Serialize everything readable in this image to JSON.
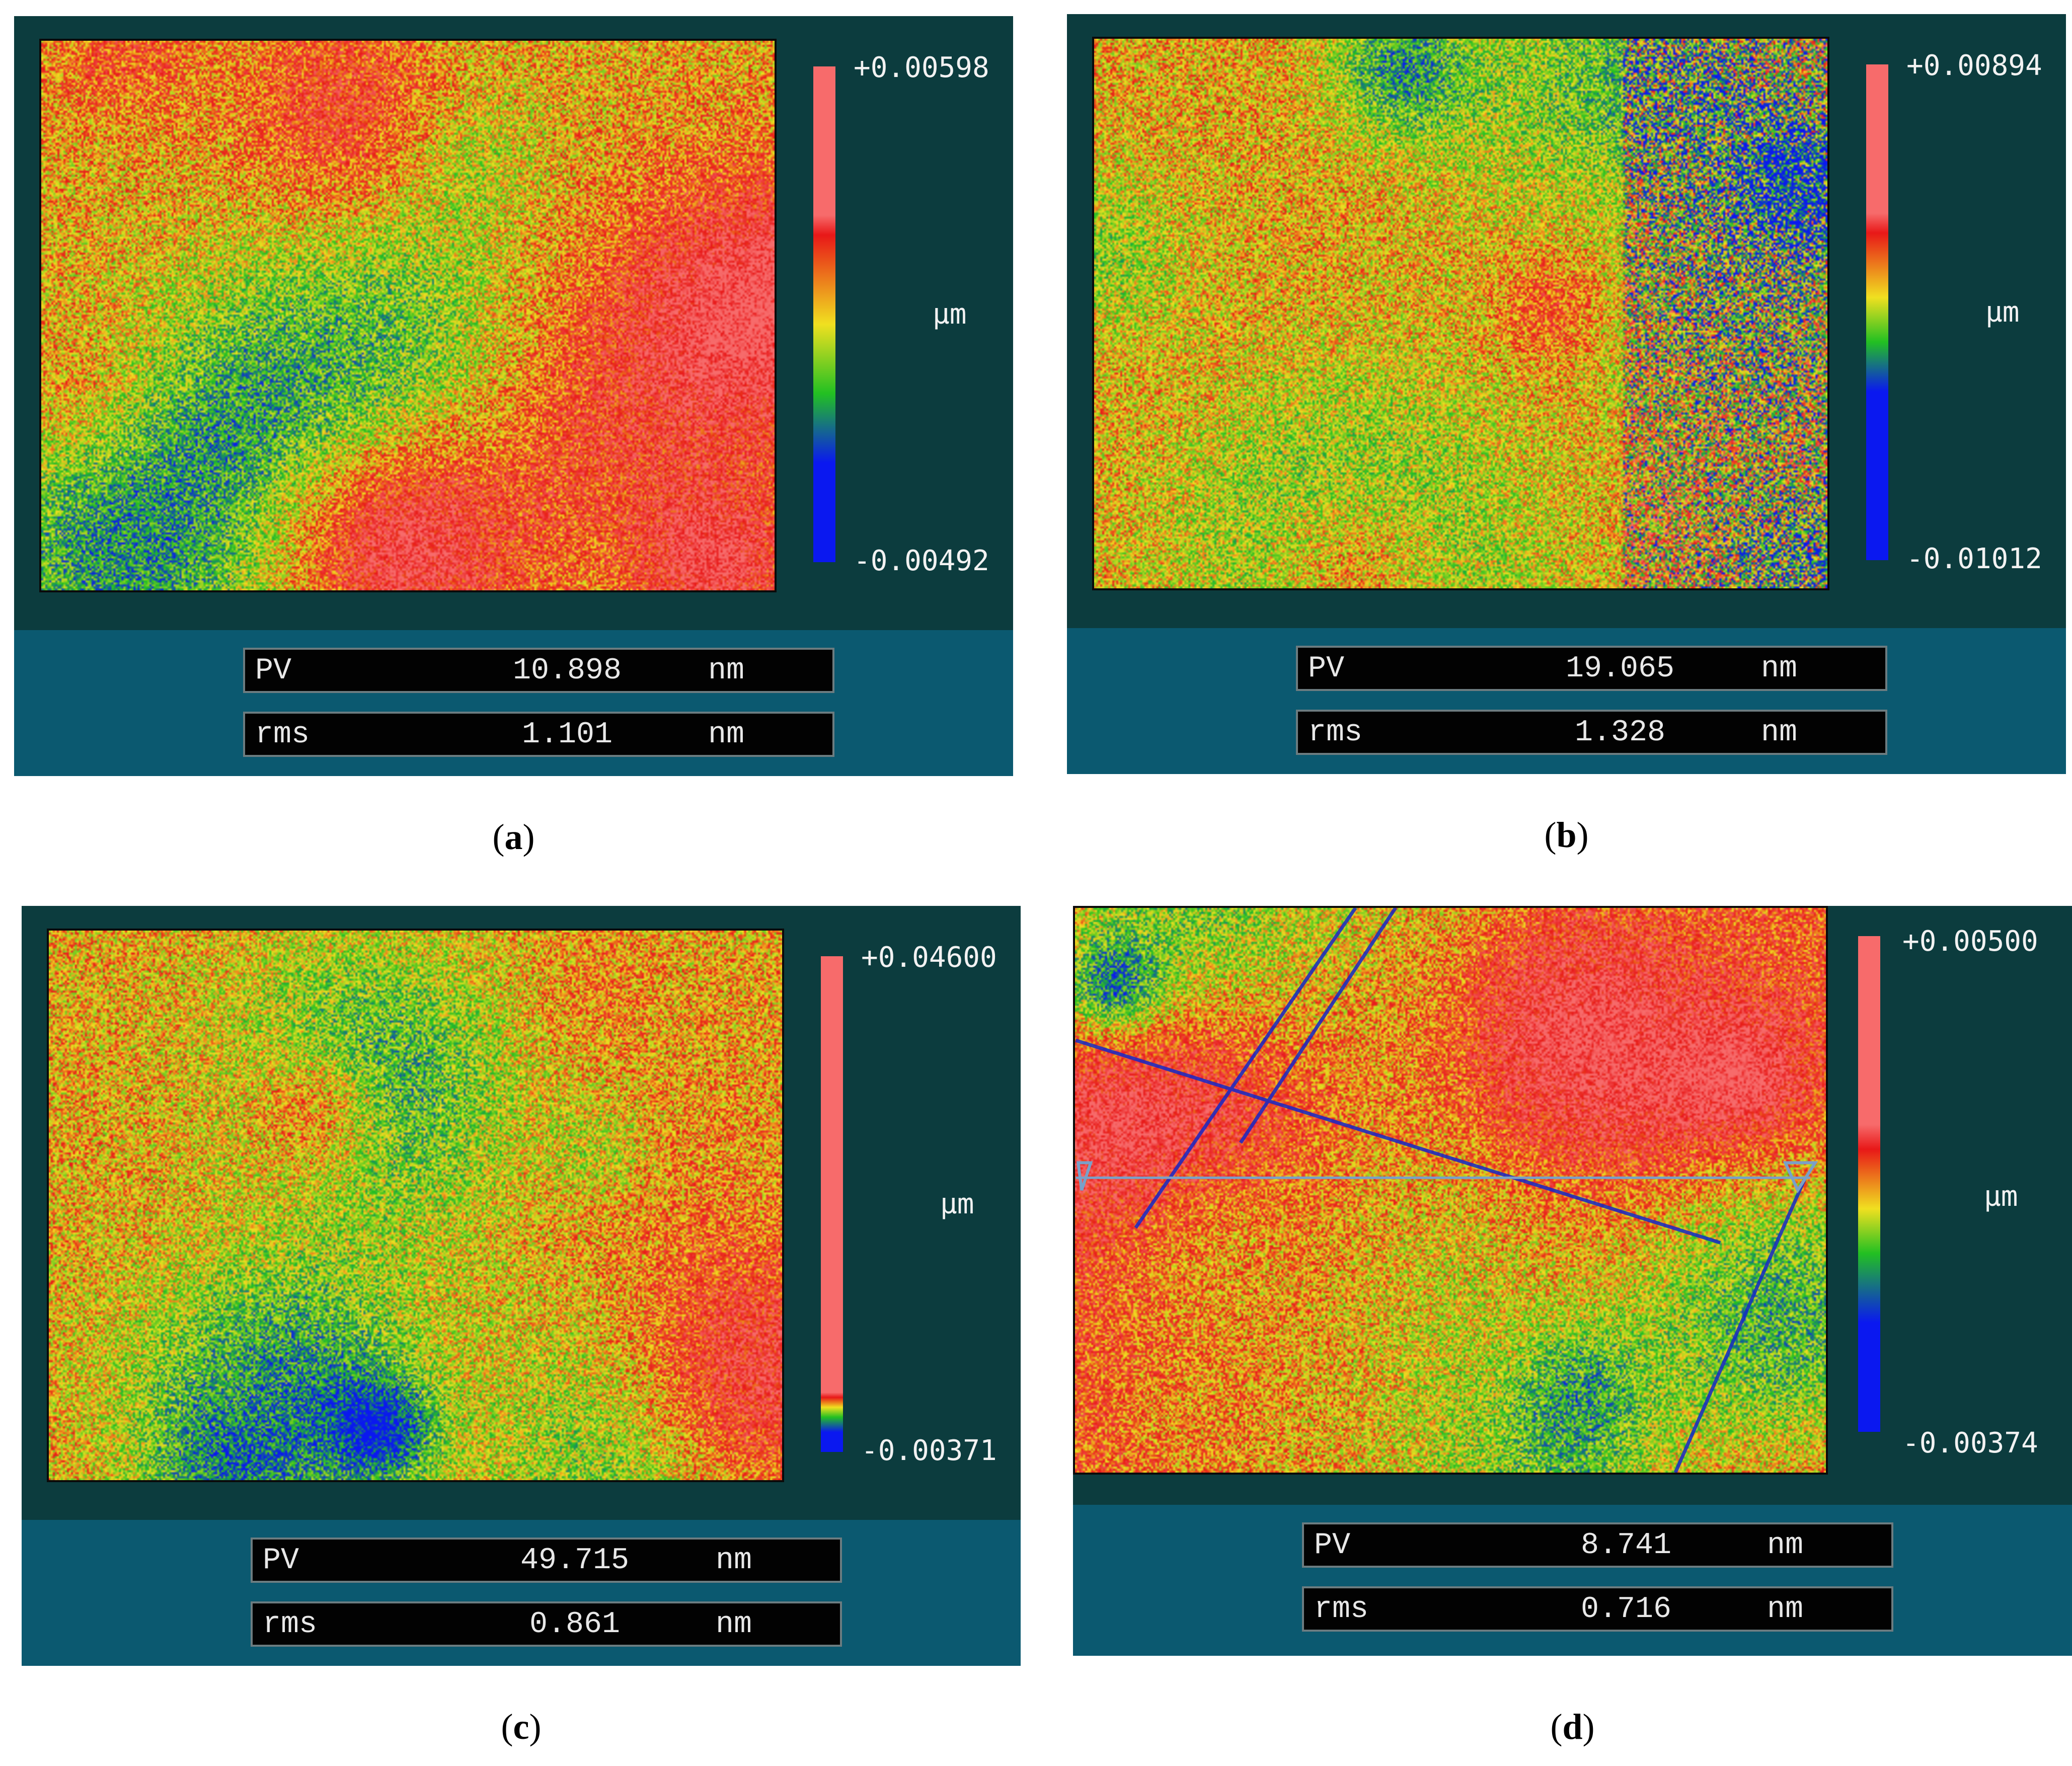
{
  "panels": [
    {
      "caption": "a",
      "colorbar": {
        "max": "+0.00598",
        "min": "-0.00492",
        "unit": "µm"
      },
      "stats": {
        "pv_label": "PV",
        "pv_value": "10.898",
        "pv_unit": "nm",
        "rms_label": "rms",
        "rms_value": "1.101",
        "rms_unit": "nm"
      }
    },
    {
      "caption": "b",
      "colorbar": {
        "max": "+0.00894",
        "min": "-0.01012",
        "unit": "µm"
      },
      "stats": {
        "pv_label": "PV",
        "pv_value": "19.065",
        "pv_unit": "nm",
        "rms_label": "rms",
        "rms_value": "1.328",
        "rms_unit": "nm"
      }
    },
    {
      "caption": "c",
      "colorbar": {
        "max": "+0.04600",
        "min": "-0.00371",
        "unit": "µm"
      },
      "stats": {
        "pv_label": "PV",
        "pv_value": "49.715",
        "pv_unit": "nm",
        "rms_label": "rms",
        "rms_value": "0.861",
        "rms_unit": "nm"
      }
    },
    {
      "caption": "d",
      "colorbar": {
        "max": "+0.00500",
        "min": "-0.00374",
        "unit": "µm"
      },
      "stats": {
        "pv_label": "PV",
        "pv_value": "8.741",
        "pv_unit": "nm",
        "rms_label": "rms",
        "rms_value": "0.716",
        "rms_unit": "nm"
      }
    }
  ],
  "colors": {
    "viewer_bg": "#0c3c3e",
    "stats_bg": "#0b5970",
    "field_bg": "#020202",
    "scale_high": "#f76b6b",
    "scale_red": "#e81818",
    "scale_yellow": "#f0e020",
    "scale_green": "#22c022",
    "scale_blue": "#0a18f0"
  }
}
